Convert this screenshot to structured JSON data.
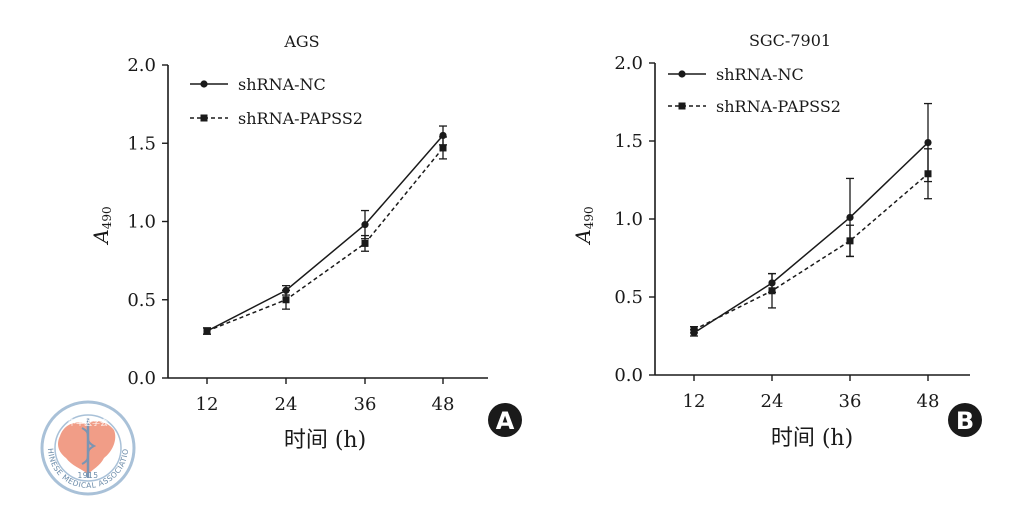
{
  "chart_data": [
    {
      "type": "line",
      "panel_letter": "A",
      "title": "AGS",
      "xlabel": "时间 (h)",
      "ylabel": "A",
      "ylabel_sub": "490",
      "categories": [
        "12",
        "24",
        "36",
        "48"
      ],
      "yticks": [
        "0.0",
        "0.5",
        "1.0",
        "1.5",
        "2.0"
      ],
      "ylim": [
        0,
        2
      ],
      "legend_position": "top-left",
      "series": [
        {
          "name": "shRNA-NC",
          "style": "solid",
          "marker": "circle",
          "values": [
            0.3,
            0.56,
            0.98,
            1.55
          ],
          "errors": [
            0.02,
            0.03,
            0.09,
            0.06
          ]
        },
        {
          "name": "shRNA-PAPSS2",
          "style": "dashed",
          "marker": "square",
          "values": [
            0.3,
            0.5,
            0.86,
            1.47
          ],
          "errors": [
            0.02,
            0.06,
            0.05,
            0.07
          ]
        }
      ]
    },
    {
      "type": "line",
      "panel_letter": "B",
      "title": "SGC-7901",
      "xlabel": "时间 (h)",
      "ylabel": "A",
      "ylabel_sub": "490",
      "categories": [
        "12",
        "24",
        "36",
        "48"
      ],
      "yticks": [
        "0.0",
        "0.5",
        "1.0",
        "1.5",
        "2.0"
      ],
      "ylim": [
        0,
        2
      ],
      "legend_position": "top-left",
      "series": [
        {
          "name": "shRNA-NC",
          "style": "solid",
          "marker": "circle",
          "values": [
            0.27,
            0.59,
            1.01,
            1.49
          ],
          "errors": [
            0.02,
            0.06,
            0.25,
            0.25
          ]
        },
        {
          "name": "shRNA-PAPSS2",
          "style": "dashed",
          "marker": "square",
          "values": [
            0.29,
            0.54,
            0.86,
            1.29
          ],
          "errors": [
            0.02,
            0.11,
            0.1,
            0.16
          ]
        }
      ]
    }
  ],
  "watermark": {
    "name": "chinese-medical-association-logo",
    "text_cn": "中华医学会",
    "text_en": "CHINESE MEDICAL ASSOCIATION",
    "year": "1915",
    "colors": {
      "ring": "#a9c1d8",
      "map": "#f0927a"
    }
  },
  "colors": {
    "line": "#1a1a1a",
    "badge": "#1a1a1a"
  }
}
